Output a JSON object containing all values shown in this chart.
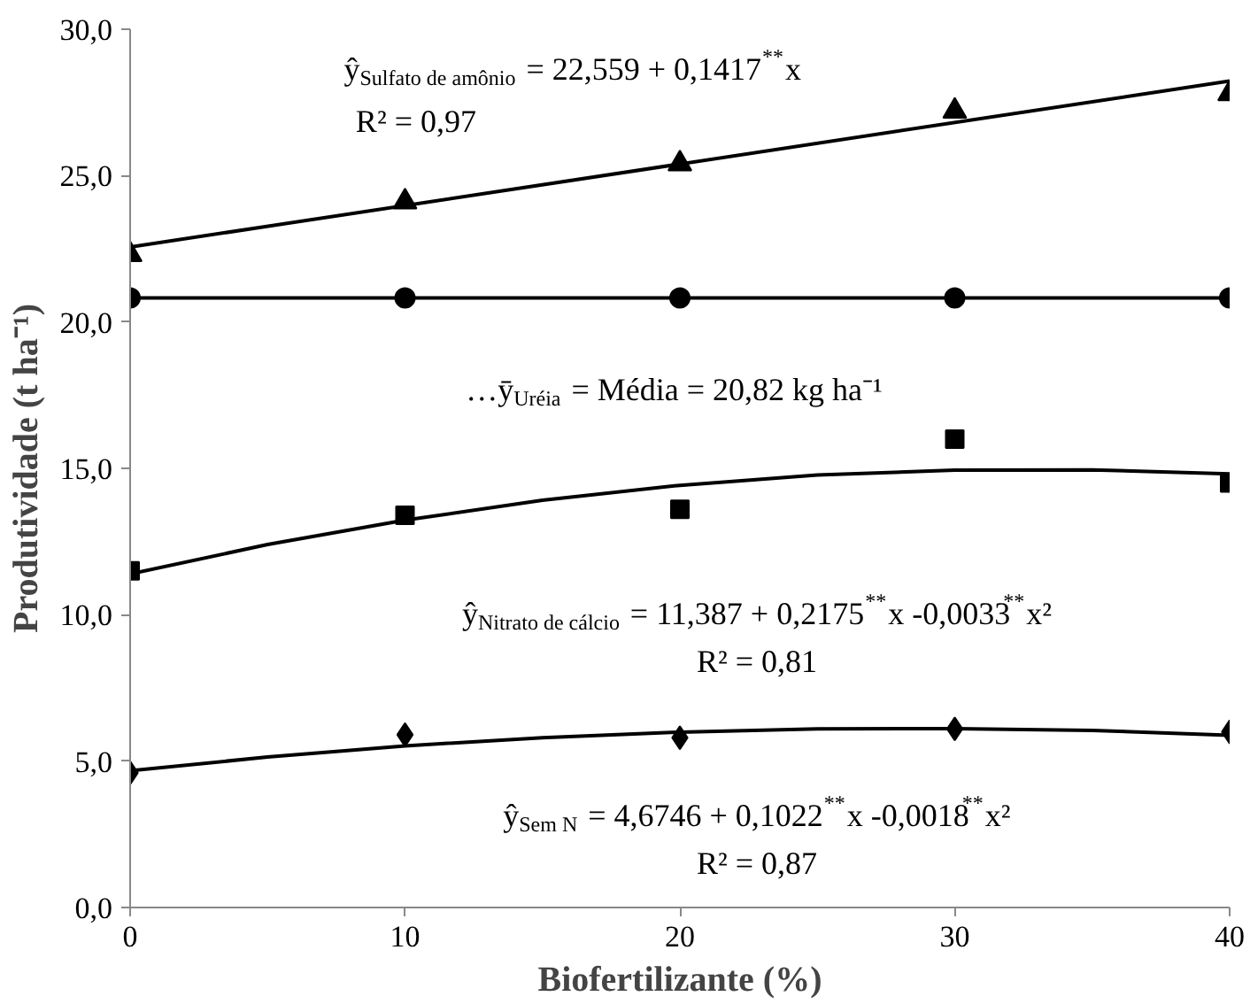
{
  "chart_data": {
    "type": "scatter",
    "xlabel": "Biofertilizante (%)",
    "ylabel": "Produtividade (t ha⁻¹)",
    "x": [
      0,
      10,
      20,
      30,
      40
    ],
    "series": [
      {
        "color": "#000000",
        "marker": "triangle",
        "values": [
          22.3,
          24.1,
          25.4,
          27.2,
          27.8
        ]
      },
      {
        "color": "#000000",
        "marker": "circle",
        "values": [
          20.82,
          20.82,
          20.82,
          20.82,
          20.82
        ]
      },
      {
        "color": "#000000",
        "marker": "square",
        "values": [
          11.5,
          13.4,
          13.6,
          16.0,
          14.5
        ]
      },
      {
        "color": "#000000",
        "marker": "diamond",
        "values": [
          4.6,
          5.9,
          5.8,
          6.1,
          6.0
        ]
      },
      {
        "type": "line",
        "color": "#000000",
        "x": [
          0,
          40
        ],
        "values": [
          22.56,
          28.23
        ]
      },
      {
        "type": "line",
        "color": "#000000",
        "x": [
          0,
          40
        ],
        "values": [
          20.82,
          20.82
        ]
      },
      {
        "type": "line",
        "color": "#000000",
        "x": [
          0,
          5,
          10,
          15,
          20,
          25,
          30,
          35,
          40
        ],
        "values": [
          11.39,
          12.4,
          13.23,
          13.91,
          14.42,
          14.77,
          14.94,
          14.95,
          14.81
        ]
      },
      {
        "type": "line",
        "color": "#000000",
        "x": [
          0,
          5,
          10,
          15,
          20,
          25,
          30,
          35,
          40
        ],
        "values": [
          4.67,
          5.14,
          5.52,
          5.8,
          5.99,
          6.1,
          6.11,
          6.05,
          5.88
        ]
      }
    ],
    "xlim": [
      0,
      40
    ],
    "xticks": [
      0,
      10,
      20,
      30,
      40
    ],
    "ylim": [
      0,
      30
    ],
    "yticks": [
      {
        "value": 0,
        "label": "0,0"
      },
      {
        "value": 5,
        "label": "5,0"
      },
      {
        "value": 10,
        "label": "10,0"
      },
      {
        "value": 15,
        "label": "15,0"
      },
      {
        "value": 20,
        "label": "20,0"
      },
      {
        "value": 25,
        "label": "25,0"
      },
      {
        "value": 30,
        "label": "30,0"
      }
    ],
    "grid": false,
    "annotations": [
      "ŷ$_{Sulfato de amônio}$ = 22,559 + 0,1417$^{**}$x",
      "R² = 0,97",
      "…ȳ$_{Uréia}$ = Média = 20,82 kg ha⁻¹",
      "ŷ$_{Nitrato de cálcio}$ = 11,387 + 0,2175$^{**}$x -0,0033$^{**}$x²",
      "R² = 0,81",
      "ŷ$_{Sem N}$ = 4,6746 + 0,1022$^{**}$x -0,0018$^{**}$x²",
      "R² = 0,87"
    ]
  }
}
